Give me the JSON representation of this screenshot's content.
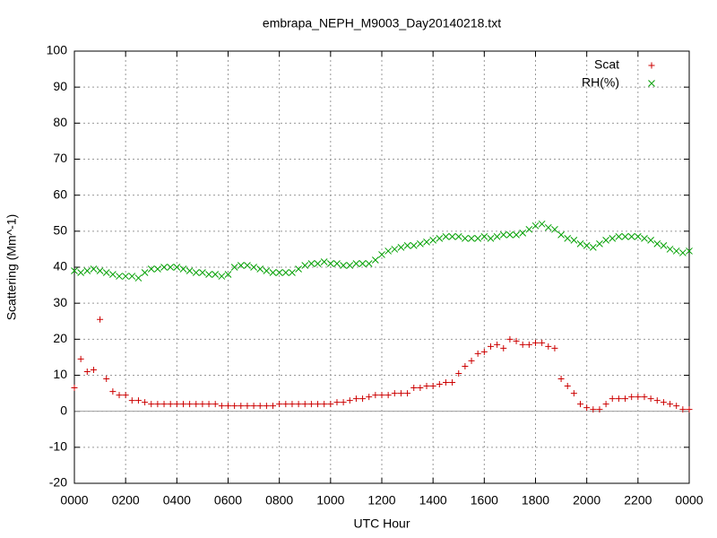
{
  "chart_data": {
    "type": "scatter",
    "title": "embrapa_NEPH_M9003_Day20140218.txt",
    "x_label": "UTC Hour",
    "y_label": "Scattering (Mm^-1)",
    "xlim": [
      0,
      24
    ],
    "ylim": [
      -20,
      100
    ],
    "xticks": [
      {
        "value": 0,
        "label": "0000"
      },
      {
        "value": 2,
        "label": "0200"
      },
      {
        "value": 4,
        "label": "0400"
      },
      {
        "value": 6,
        "label": "0600"
      },
      {
        "value": 8,
        "label": "0800"
      },
      {
        "value": 10,
        "label": "1000"
      },
      {
        "value": 12,
        "label": "1200"
      },
      {
        "value": 14,
        "label": "1400"
      },
      {
        "value": 16,
        "label": "1600"
      },
      {
        "value": 18,
        "label": "1800"
      },
      {
        "value": 20,
        "label": "2000"
      },
      {
        "value": 22,
        "label": "2200"
      },
      {
        "value": 24,
        "label": "0000"
      }
    ],
    "yticks": [
      -20,
      -10,
      0,
      10,
      20,
      30,
      40,
      50,
      60,
      70,
      80,
      90,
      100
    ],
    "grid": true,
    "legend": "top-right",
    "x": [
      0,
      0.25,
      0.5,
      0.75,
      1,
      1.25,
      1.5,
      1.75,
      2,
      2.25,
      2.5,
      2.75,
      3,
      3.25,
      3.5,
      3.75,
      4,
      4.25,
      4.5,
      4.75,
      5,
      5.25,
      5.5,
      5.75,
      6,
      6.25,
      6.5,
      6.75,
      7,
      7.25,
      7.5,
      7.75,
      8,
      8.25,
      8.5,
      8.75,
      9,
      9.25,
      9.5,
      9.75,
      10,
      10.25,
      10.5,
      10.75,
      11,
      11.25,
      11.5,
      11.75,
      12,
      12.25,
      12.5,
      12.75,
      13,
      13.25,
      13.5,
      13.75,
      14,
      14.25,
      14.5,
      14.75,
      15,
      15.25,
      15.5,
      15.75,
      16,
      16.25,
      16.5,
      16.75,
      17,
      17.25,
      17.5,
      17.75,
      18,
      18.25,
      18.5,
      18.75,
      19,
      19.25,
      19.5,
      19.75,
      20,
      20.25,
      20.5,
      20.75,
      21,
      21.25,
      21.5,
      21.75,
      22,
      22.25,
      22.5,
      22.75,
      23,
      23.25,
      23.5,
      23.75,
      24
    ],
    "series": [
      {
        "name": "Scat",
        "color": "#cc0000",
        "marker": "plus",
        "values": [
          6.5,
          14.5,
          11,
          11.5,
          25.5,
          9,
          5.5,
          4.5,
          4.5,
          3,
          3,
          2.5,
          2,
          2,
          2,
          2,
          2,
          2,
          2,
          2,
          2,
          2,
          2,
          1.5,
          1.5,
          1.5,
          1.5,
          1.5,
          1.5,
          1.5,
          1.5,
          1.5,
          2,
          2,
          2,
          2,
          2,
          2,
          2,
          2,
          2,
          2.5,
          2.5,
          3,
          3.5,
          3.5,
          4,
          4.5,
          4.5,
          4.5,
          5,
          5,
          5,
          6.5,
          6.5,
          7,
          7,
          7.5,
          8,
          8,
          10.5,
          12.5,
          14,
          16,
          16.5,
          18,
          18.5,
          17.5,
          20,
          19.5,
          18.5,
          18.5,
          19,
          19,
          18,
          17.5,
          9,
          7,
          5,
          2,
          1,
          0.5,
          0.5,
          2,
          3.5,
          3.5,
          3.5,
          4,
          4,
          4,
          3.5,
          3,
          2.5,
          2,
          1.5,
          0.5,
          0.5
        ]
      },
      {
        "name": "RH(%)",
        "color": "#00a000",
        "marker": "cross",
        "values": [
          39,
          38.5,
          39,
          39.5,
          39,
          38.5,
          38,
          37.5,
          37.5,
          37.5,
          37,
          38.5,
          39.5,
          39.5,
          40,
          40,
          40,
          39.5,
          39,
          38.5,
          38.5,
          38,
          38,
          37.5,
          38,
          40,
          40.5,
          40.5,
          40,
          39.5,
          39,
          38.5,
          38.5,
          38.5,
          38.5,
          39.5,
          40.5,
          41,
          41,
          41.5,
          41,
          41,
          40.5,
          40.5,
          41,
          41,
          41,
          42,
          43.5,
          44.5,
          45,
          45.5,
          46,
          46,
          46.5,
          47,
          47.5,
          48,
          48.5,
          48.5,
          48.5,
          48,
          48,
          48,
          48.5,
          48,
          48.5,
          49,
          49,
          49,
          49.5,
          50.5,
          51.5,
          52,
          51,
          50.5,
          49,
          48,
          47.5,
          46.5,
          46,
          45.5,
          46.5,
          47.5,
          48,
          48.5,
          48.5,
          48.5,
          48.5,
          48,
          47.5,
          46.5,
          46,
          45,
          44.5,
          44,
          44.5
        ]
      }
    ]
  }
}
